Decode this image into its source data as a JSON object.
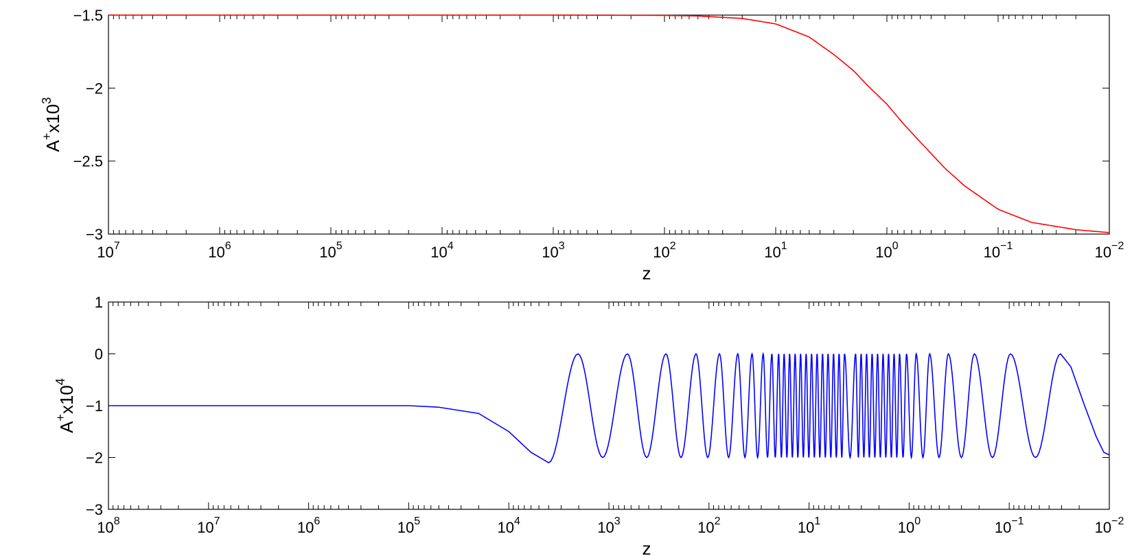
{
  "chart_data": [
    {
      "type": "line",
      "xscale": "log",
      "x_reversed": true,
      "xlim": [
        10000000,
        0.01
      ],
      "ylim": [
        -3,
        -1.5
      ],
      "xlabel": "z",
      "ylabel": "A⁺x10³",
      "ylabel_parts": {
        "base": "A",
        "sup1": "+",
        "mid": "x10",
        "sup2": "3"
      },
      "xticks": [
        {
          "value": 10000000,
          "base": "10",
          "exp": "7"
        },
        {
          "value": 1000000,
          "base": "10",
          "exp": "6"
        },
        {
          "value": 100000,
          "base": "10",
          "exp": "5"
        },
        {
          "value": 10000,
          "base": "10",
          "exp": "4"
        },
        {
          "value": 1000,
          "base": "10",
          "exp": "3"
        },
        {
          "value": 100,
          "base": "10",
          "exp": "2"
        },
        {
          "value": 10,
          "base": "10",
          "exp": "1"
        },
        {
          "value": 1,
          "base": "10",
          "exp": "0"
        },
        {
          "value": 0.1,
          "base": "10",
          "exp": "−1"
        },
        {
          "value": 0.01,
          "base": "10",
          "exp": "−2"
        }
      ],
      "yticks": [
        {
          "value": -1.5,
          "label": "−1.5"
        },
        {
          "value": -2,
          "label": "−2"
        },
        {
          "value": -2.5,
          "label": "−2.5"
        },
        {
          "value": -3,
          "label": "−3"
        }
      ],
      "grid": false,
      "series": [
        {
          "color": "#ff0000",
          "x": [
            10000000,
            1000000,
            100000,
            10000,
            1000,
            100,
            50,
            20,
            10,
            5,
            3,
            2,
            1.5,
            1,
            0.7,
            0.5,
            0.3,
            0.2,
            0.1,
            0.05,
            0.02,
            0.01
          ],
          "y": [
            -1.5,
            -1.5,
            -1.5,
            -1.5,
            -1.5,
            -1.502,
            -1.506,
            -1.523,
            -1.56,
            -1.65,
            -1.77,
            -1.88,
            -1.98,
            -2.11,
            -2.25,
            -2.37,
            -2.55,
            -2.67,
            -2.83,
            -2.92,
            -2.97,
            -2.99
          ]
        }
      ]
    },
    {
      "type": "line",
      "xscale": "log",
      "x_reversed": true,
      "xlim": [
        100000000,
        0.01
      ],
      "ylim": [
        -3,
        1
      ],
      "xlabel": "z",
      "ylabel": "A⁺x10⁴",
      "ylabel_parts": {
        "base": "A",
        "sup1": "+",
        "mid": "x10",
        "sup2": "4"
      },
      "xticks": [
        {
          "value": 100000000,
          "base": "10",
          "exp": "8"
        },
        {
          "value": 10000000,
          "base": "10",
          "exp": "7"
        },
        {
          "value": 1000000,
          "base": "10",
          "exp": "6"
        },
        {
          "value": 100000,
          "base": "10",
          "exp": "5"
        },
        {
          "value": 10000,
          "base": "10",
          "exp": "4"
        },
        {
          "value": 1000,
          "base": "10",
          "exp": "3"
        },
        {
          "value": 100,
          "base": "10",
          "exp": "2"
        },
        {
          "value": 10,
          "base": "10",
          "exp": "1"
        },
        {
          "value": 1,
          "base": "10",
          "exp": "0"
        },
        {
          "value": 0.1,
          "base": "10",
          "exp": "−1"
        },
        {
          "value": 0.01,
          "base": "10",
          "exp": "−2"
        }
      ],
      "yticks": [
        {
          "value": 1,
          "label": "1"
        },
        {
          "value": 0,
          "label": "0"
        },
        {
          "value": -1,
          "label": "−1"
        },
        {
          "value": -2,
          "label": "−2"
        },
        {
          "value": -3,
          "label": "−3"
        }
      ],
      "grid": false,
      "series": [
        {
          "color": "#0000ff",
          "x": [
            100000000,
            100000,
            50000,
            20000,
            10000,
            6000,
            4000,
            3000,
            2000,
            1500,
            1000,
            700,
            500,
            300,
            200,
            100,
            50,
            20,
            10,
            5,
            2,
            1,
            0.5,
            0.3,
            0.2,
            0.1,
            0.06,
            0.03,
            0.02,
            0.01
          ],
          "y": [
            -1,
            -1,
            -1.03,
            -1.15,
            -1.5,
            -1.9,
            -2.1,
            -1.6,
            -0.3,
            0,
            -2,
            0,
            -2,
            0,
            -2,
            0,
            -2,
            0,
            -2,
            0,
            -2,
            0,
            -2,
            0,
            -2,
            0,
            -2,
            0,
            -1.2,
            -1.95
          ]
        }
      ]
    }
  ]
}
